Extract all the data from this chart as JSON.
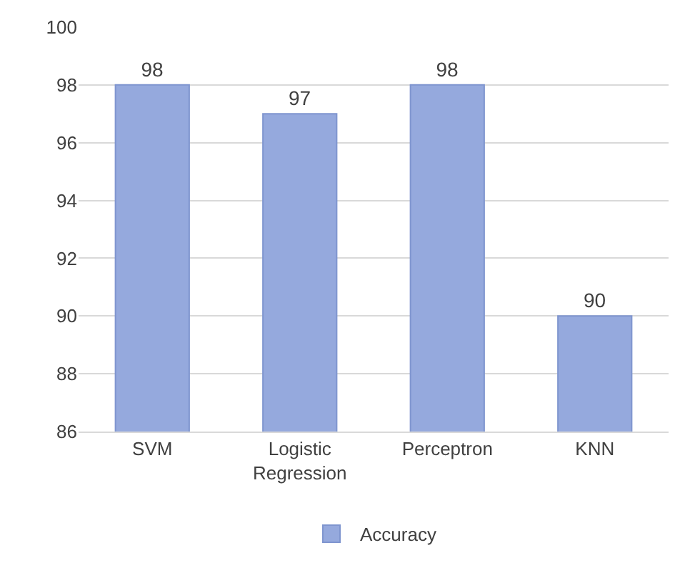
{
  "chart_data": {
    "type": "bar",
    "categories": [
      "SVM",
      "Logistic Regression",
      "Perceptron",
      "KNN"
    ],
    "series": [
      {
        "name": "Accuracy",
        "color": "#95a9dd",
        "values": [
          98,
          97,
          98,
          90
        ]
      }
    ],
    "ylim": [
      86,
      100
    ],
    "yticks": [
      86,
      88,
      90,
      92,
      94,
      96,
      98,
      100
    ],
    "grid": "y",
    "legend": "bottom",
    "data_labels": true
  }
}
